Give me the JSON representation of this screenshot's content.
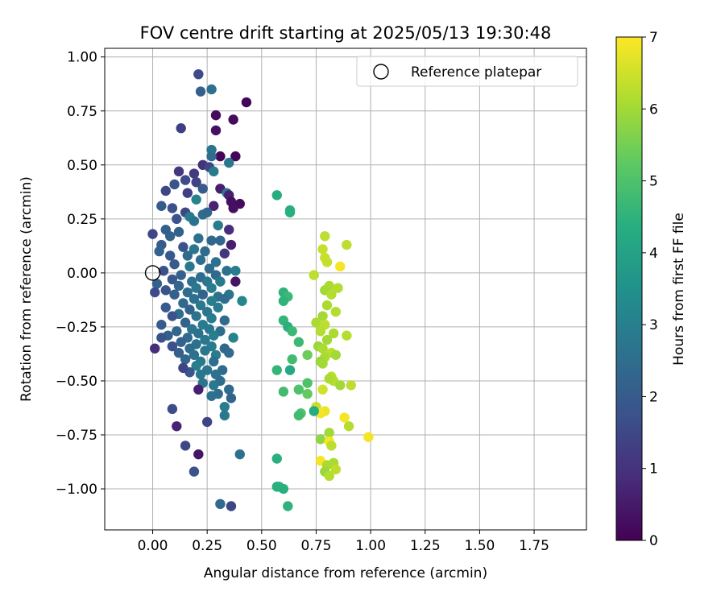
{
  "chart_data": {
    "type": "scatter",
    "title": "FOV centre drift starting at 2025/05/13 19:30:48",
    "xlabel": "Angular distance from reference (arcmin)",
    "ylabel": "Rotation from reference (arcmin)",
    "xlim": [
      -0.22,
      1.99
    ],
    "ylim": [
      -1.19,
      1.04
    ],
    "xticks": [
      0.0,
      0.25,
      0.5,
      0.75,
      1.0,
      1.25,
      1.5,
      1.75
    ],
    "xtick_labels": [
      "0.00",
      "0.25",
      "0.50",
      "0.75",
      "1.00",
      "1.25",
      "1.50",
      "1.75"
    ],
    "yticks": [
      -1.0,
      -0.75,
      -0.5,
      -0.25,
      0.0,
      0.25,
      0.5,
      0.75,
      1.0
    ],
    "ytick_labels": [
      "−1.00",
      "−0.75",
      "−0.50",
      "−0.25",
      "0.00",
      "0.25",
      "0.50",
      "0.75",
      "1.00"
    ],
    "grid": true,
    "legend": {
      "position": "top-right",
      "entries": [
        {
          "label": "Reference platepar",
          "marker": "open-circle"
        }
      ]
    },
    "reference_point": {
      "x": 0.0,
      "y": 0.0
    },
    "colorbar": {
      "label": "Hours from first FF file",
      "range": [
        0,
        7
      ],
      "ticks": [
        0,
        1,
        2,
        3,
        4,
        5,
        6,
        7
      ],
      "tick_labels": [
        "0",
        "1",
        "2",
        "3",
        "4",
        "5",
        "6",
        "7"
      ],
      "colormap": "viridis"
    },
    "series": [
      {
        "color_encoding": "hours",
        "points": [
          [
            0.21,
            0.92,
            1.6
          ],
          [
            0.27,
            0.85,
            2.6
          ],
          [
            0.22,
            0.84,
            2.1
          ],
          [
            0.43,
            0.79,
            0.1
          ],
          [
            0.29,
            0.73,
            0.2
          ],
          [
            0.37,
            0.71,
            0.2
          ],
          [
            0.13,
            0.67,
            1.3
          ],
          [
            0.29,
            0.66,
            0.3
          ],
          [
            0.27,
            0.57,
            2.7
          ],
          [
            0.31,
            0.54,
            0.1
          ],
          [
            0.38,
            0.54,
            0.1
          ],
          [
            0.27,
            0.54,
            2.5
          ],
          [
            0.23,
            0.5,
            1.0
          ],
          [
            0.35,
            0.51,
            2.8
          ],
          [
            0.26,
            0.49,
            1.5
          ],
          [
            0.28,
            0.47,
            2.9
          ],
          [
            0.12,
            0.47,
            1.1
          ],
          [
            0.19,
            0.46,
            1.2
          ],
          [
            0.2,
            0.42,
            1.4
          ],
          [
            0.15,
            0.43,
            1.6
          ],
          [
            0.1,
            0.41,
            1.8
          ],
          [
            0.23,
            0.39,
            2.0
          ],
          [
            0.31,
            0.39,
            0.6
          ],
          [
            0.34,
            0.37,
            2.7
          ],
          [
            0.06,
            0.38,
            1.5
          ],
          [
            0.16,
            0.37,
            1.3
          ],
          [
            0.2,
            0.34,
            3.1
          ],
          [
            0.35,
            0.36,
            0.6
          ],
          [
            0.36,
            0.33,
            0.3
          ],
          [
            0.4,
            0.32,
            0.2
          ],
          [
            0.28,
            0.31,
            0.7
          ],
          [
            0.37,
            0.3,
            0.3
          ],
          [
            0.04,
            0.31,
            2.0
          ],
          [
            0.09,
            0.3,
            1.7
          ],
          [
            0.15,
            0.28,
            1.5
          ],
          [
            0.17,
            0.26,
            2.9
          ],
          [
            0.23,
            0.27,
            2.5
          ],
          [
            0.25,
            0.28,
            2.3
          ],
          [
            0.11,
            0.25,
            1.8
          ],
          [
            0.19,
            0.24,
            2.6
          ],
          [
            0.3,
            0.22,
            2.9
          ],
          [
            0.35,
            0.2,
            0.9
          ],
          [
            0.06,
            0.2,
            2.1
          ],
          [
            0.12,
            0.19,
            2.2
          ],
          [
            0.0,
            0.18,
            1.5
          ],
          [
            0.08,
            0.17,
            2.2
          ],
          [
            0.21,
            0.16,
            2.6
          ],
          [
            0.27,
            0.15,
            2.3
          ],
          [
            0.31,
            0.15,
            2.3
          ],
          [
            0.36,
            0.13,
            0.6
          ],
          [
            0.04,
            0.13,
            2.0
          ],
          [
            0.14,
            0.12,
            1.8
          ],
          [
            0.19,
            0.11,
            2.7
          ],
          [
            0.24,
            0.1,
            2.4
          ],
          [
            0.33,
            0.09,
            1.1
          ],
          [
            0.03,
            0.1,
            2.2
          ],
          [
            0.08,
            0.08,
            1.9
          ],
          [
            0.16,
            0.08,
            2.4
          ],
          [
            0.22,
            0.06,
            2.5
          ],
          [
            0.29,
            0.05,
            2.6
          ],
          [
            0.1,
            0.04,
            2.0
          ],
          [
            0.17,
            0.03,
            2.8
          ],
          [
            0.26,
            0.02,
            2.4
          ],
          [
            0.34,
            0.01,
            2.6
          ],
          [
            0.38,
            0.01,
            2.9
          ],
          [
            0.05,
            0.01,
            1.7
          ],
          [
            0.13,
            -0.01,
            2.1
          ],
          [
            0.22,
            -0.02,
            2.5
          ],
          [
            0.29,
            -0.01,
            2.4
          ],
          [
            0.09,
            -0.03,
            1.9
          ],
          [
            0.18,
            -0.04,
            2.6
          ],
          [
            0.25,
            -0.04,
            2.7
          ],
          [
            0.31,
            -0.04,
            2.8
          ],
          [
            0.38,
            -0.04,
            0.4
          ],
          [
            0.02,
            -0.05,
            2.2
          ],
          [
            0.12,
            -0.06,
            2.3
          ],
          [
            0.2,
            -0.07,
            2.8
          ],
          [
            0.27,
            -0.07,
            2.9
          ],
          [
            0.06,
            -0.08,
            1.8
          ],
          [
            0.16,
            -0.09,
            2.5
          ],
          [
            0.23,
            -0.1,
            2.2
          ],
          [
            0.3,
            -0.11,
            2.6
          ],
          [
            0.35,
            -0.1,
            2.7
          ],
          [
            0.01,
            -0.09,
            1.6
          ],
          [
            0.1,
            -0.1,
            2.1
          ],
          [
            0.19,
            -0.12,
            2.6
          ],
          [
            0.27,
            -0.13,
            3.0
          ],
          [
            0.33,
            -0.12,
            2.5
          ],
          [
            0.14,
            -0.14,
            2.4
          ],
          [
            0.22,
            -0.15,
            2.8
          ],
          [
            0.3,
            -0.16,
            2.9
          ],
          [
            0.41,
            -0.13,
            3.2
          ],
          [
            0.06,
            -0.16,
            2.0
          ],
          [
            0.17,
            -0.17,
            2.2
          ],
          [
            0.25,
            -0.18,
            2.7
          ],
          [
            0.12,
            -0.19,
            2.5
          ],
          [
            0.2,
            -0.2,
            2.6
          ],
          [
            0.09,
            -0.2,
            1.8
          ],
          [
            0.27,
            -0.21,
            2.9
          ],
          [
            0.33,
            -0.22,
            2.4
          ],
          [
            0.15,
            -0.23,
            2.2
          ],
          [
            0.23,
            -0.24,
            2.9
          ],
          [
            0.04,
            -0.24,
            2.0
          ],
          [
            0.18,
            -0.26,
            2.7
          ],
          [
            0.26,
            -0.26,
            2.8
          ],
          [
            0.31,
            -0.27,
            2.5
          ],
          [
            0.11,
            -0.27,
            2.3
          ],
          [
            0.21,
            -0.28,
            2.6
          ],
          [
            0.28,
            -0.29,
            3.0
          ],
          [
            0.07,
            -0.29,
            2.1
          ],
          [
            0.16,
            -0.3,
            2.4
          ],
          [
            0.24,
            -0.31,
            2.8
          ],
          [
            0.37,
            -0.3,
            3.1
          ],
          [
            0.04,
            -0.3,
            1.8
          ],
          [
            0.13,
            -0.32,
            2.2
          ],
          [
            0.2,
            -0.33,
            2.6
          ],
          [
            0.27,
            -0.34,
            2.9
          ],
          [
            0.09,
            -0.34,
            1.7
          ],
          [
            0.17,
            -0.35,
            2.5
          ],
          [
            0.24,
            -0.36,
            2.7
          ],
          [
            0.33,
            -0.35,
            2.3
          ],
          [
            0.01,
            -0.35,
            0.9
          ],
          [
            0.12,
            -0.37,
            2.1
          ],
          [
            0.19,
            -0.38,
            2.6
          ],
          [
            0.29,
            -0.38,
            2.9
          ],
          [
            0.35,
            -0.37,
            2.4
          ],
          [
            0.15,
            -0.4,
            2.3
          ],
          [
            0.22,
            -0.41,
            2.8
          ],
          [
            0.28,
            -0.41,
            2.5
          ],
          [
            0.2,
            -0.43,
            3.0
          ],
          [
            0.25,
            -0.45,
            2.7
          ],
          [
            0.32,
            -0.45,
            2.4
          ],
          [
            0.17,
            -0.46,
            1.9
          ],
          [
            0.22,
            -0.47,
            2.8
          ],
          [
            0.14,
            -0.44,
            1.4
          ],
          [
            0.29,
            -0.47,
            2.6
          ],
          [
            0.31,
            -0.5,
            2.5
          ],
          [
            0.23,
            -0.51,
            2.7
          ],
          [
            0.28,
            -0.52,
            2.8
          ],
          [
            0.21,
            -0.54,
            0.6
          ],
          [
            0.35,
            -0.54,
            2.4
          ],
          [
            0.3,
            -0.56,
            2.5
          ],
          [
            0.27,
            -0.57,
            2.6
          ],
          [
            0.36,
            -0.58,
            2.2
          ],
          [
            0.09,
            -0.63,
            1.6
          ],
          [
            0.33,
            -0.62,
            2.9
          ],
          [
            0.33,
            -0.66,
            2.8
          ],
          [
            0.25,
            -0.69,
            1.4
          ],
          [
            0.11,
            -0.71,
            0.7
          ],
          [
            0.15,
            -0.8,
            1.5
          ],
          [
            0.4,
            -0.84,
            2.6
          ],
          [
            0.21,
            -0.84,
            0.4
          ],
          [
            0.19,
            -0.92,
            1.8
          ],
          [
            0.31,
            -1.07,
            2.4
          ],
          [
            0.36,
            -1.08,
            1.5
          ],
          [
            0.57,
            0.36,
            4.3
          ],
          [
            0.63,
            0.29,
            4.4
          ],
          [
            0.63,
            0.28,
            4.4
          ],
          [
            0.79,
            0.17,
            6.3
          ],
          [
            0.89,
            0.13,
            6.3
          ],
          [
            0.78,
            0.11,
            6.4
          ],
          [
            0.79,
            0.07,
            6.4
          ],
          [
            0.8,
            0.05,
            6.4
          ],
          [
            0.86,
            0.03,
            6.9
          ],
          [
            0.74,
            -0.01,
            6.3
          ],
          [
            0.81,
            -0.06,
            6.1
          ],
          [
            0.85,
            -0.07,
            6.2
          ],
          [
            0.79,
            -0.08,
            6.0
          ],
          [
            0.6,
            -0.09,
            4.5
          ],
          [
            0.62,
            -0.11,
            4.7
          ],
          [
            0.82,
            -0.1,
            6.2
          ],
          [
            0.6,
            -0.13,
            4.5
          ],
          [
            0.8,
            -0.15,
            6.1
          ],
          [
            0.84,
            -0.18,
            6.2
          ],
          [
            0.78,
            -0.2,
            6.0
          ],
          [
            0.6,
            -0.22,
            4.6
          ],
          [
            0.75,
            -0.23,
            6.1
          ],
          [
            0.79,
            -0.24,
            6.3
          ],
          [
            0.62,
            -0.25,
            4.4
          ],
          [
            0.64,
            -0.27,
            4.7
          ],
          [
            0.77,
            -0.27,
            6.2
          ],
          [
            0.83,
            -0.28,
            6.1
          ],
          [
            0.89,
            -0.29,
            6.2
          ],
          [
            0.8,
            -0.31,
            6.0
          ],
          [
            0.67,
            -0.32,
            4.7
          ],
          [
            0.76,
            -0.34,
            5.9
          ],
          [
            0.78,
            -0.35,
            6.1
          ],
          [
            0.82,
            -0.37,
            6.3
          ],
          [
            0.79,
            -0.39,
            6.1
          ],
          [
            0.71,
            -0.38,
            5.4
          ],
          [
            0.84,
            -0.38,
            6.0
          ],
          [
            0.64,
            -0.4,
            4.8
          ],
          [
            0.77,
            -0.41,
            5.9
          ],
          [
            0.78,
            -0.42,
            6.0
          ],
          [
            0.57,
            -0.45,
            4.6
          ],
          [
            0.63,
            -0.45,
            4.2
          ],
          [
            0.82,
            -0.48,
            6.3
          ],
          [
            0.83,
            -0.5,
            6.2
          ],
          [
            0.81,
            -0.49,
            6.1
          ],
          [
            0.71,
            -0.51,
            5.0
          ],
          [
            0.86,
            -0.52,
            6.0
          ],
          [
            0.91,
            -0.52,
            6.3
          ],
          [
            0.78,
            -0.54,
            6.5
          ],
          [
            0.67,
            -0.54,
            5.0
          ],
          [
            0.71,
            -0.56,
            5.3
          ],
          [
            0.6,
            -0.55,
            4.8
          ],
          [
            0.75,
            -0.62,
            6.4
          ],
          [
            0.79,
            -0.64,
            6.8
          ],
          [
            0.77,
            -0.65,
            6.9
          ],
          [
            0.68,
            -0.65,
            5.0
          ],
          [
            0.67,
            -0.66,
            4.8
          ],
          [
            0.74,
            -0.64,
            4.3
          ],
          [
            0.88,
            -0.67,
            6.9
          ],
          [
            0.9,
            -0.71,
            6.2
          ],
          [
            0.81,
            -0.74,
            6.0
          ],
          [
            0.77,
            -0.77,
            5.8
          ],
          [
            0.81,
            -0.78,
            6.9
          ],
          [
            0.99,
            -0.76,
            6.9
          ],
          [
            0.82,
            -0.8,
            6.3
          ],
          [
            0.77,
            -0.87,
            6.9
          ],
          [
            0.57,
            -0.86,
            4.4
          ],
          [
            0.8,
            -0.89,
            6.1
          ],
          [
            0.83,
            -0.88,
            6.1
          ],
          [
            0.79,
            -0.92,
            5.9
          ],
          [
            0.81,
            -0.94,
            6.2
          ],
          [
            0.84,
            -0.91,
            6.3
          ],
          [
            0.58,
            -0.99,
            4.5
          ],
          [
            0.6,
            -1.0,
            4.4
          ],
          [
            0.62,
            -1.08,
            4.5
          ],
          [
            0.57,
            -0.99,
            4.4
          ]
        ]
      }
    ]
  }
}
